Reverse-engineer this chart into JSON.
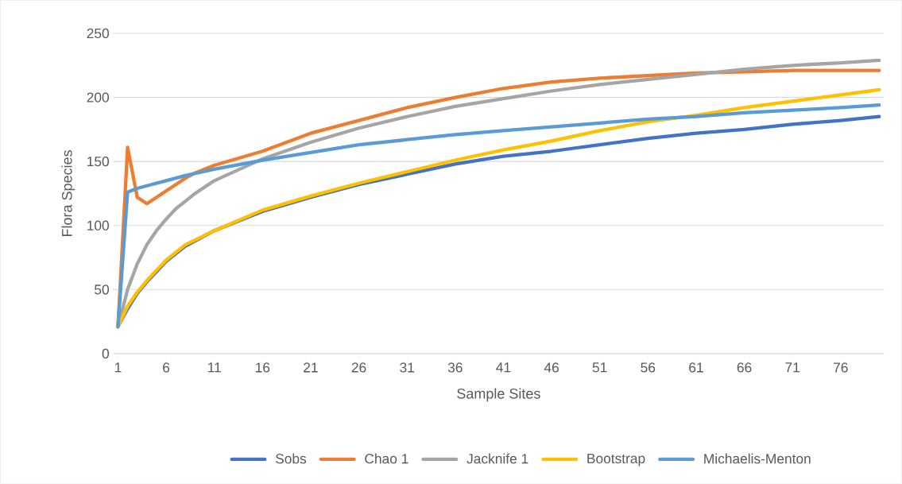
{
  "chart_data": {
    "type": "line",
    "xlabel": "Sample Sites",
    "ylabel": "Flora Species",
    "xlim": [
      0.5,
      80.5
    ],
    "xticks": [
      1,
      6,
      11,
      16,
      21,
      26,
      31,
      36,
      41,
      46,
      51,
      56,
      61,
      66,
      71,
      76
    ],
    "ylim": [
      0,
      250
    ],
    "yticks": [
      0,
      50,
      100,
      150,
      200,
      250
    ],
    "grid": "y",
    "legend": "bottom",
    "marker": "none",
    "line_style": "solid",
    "series": [
      {
        "name": "Sobs",
        "color": "#4472c4",
        "x": [
          1,
          2,
          3,
          4,
          5,
          6,
          8,
          11,
          16,
          21,
          26,
          31,
          36,
          41,
          46,
          51,
          56,
          61,
          66,
          71,
          76,
          80
        ],
        "values": [
          21,
          35,
          47,
          56,
          64,
          72,
          84,
          96,
          111,
          122,
          132,
          140,
          148,
          154,
          158,
          163,
          168,
          172,
          175,
          179,
          182,
          185
        ]
      },
      {
        "name": "Chao 1",
        "color": "#ed7d31",
        "x": [
          1,
          2,
          3,
          4,
          5,
          6,
          7,
          8,
          9,
          10,
          11,
          16,
          21,
          26,
          31,
          36,
          41,
          46,
          51,
          56,
          61,
          66,
          71,
          76,
          80
        ],
        "values": [
          21,
          161,
          122,
          117,
          122,
          127,
          132,
          137,
          141,
          144,
          147,
          158,
          172,
          182,
          192,
          200,
          207,
          212,
          215,
          217,
          219,
          220,
          221,
          221,
          221
        ]
      },
      {
        "name": "Jacknife 1",
        "color": "#a5a5a5",
        "x": [
          1,
          2,
          3,
          4,
          5,
          6,
          7,
          8,
          9,
          10,
          11,
          16,
          21,
          26,
          31,
          36,
          41,
          46,
          51,
          56,
          61,
          66,
          71,
          76,
          80
        ],
        "values": [
          21,
          50,
          70,
          85,
          96,
          105,
          113,
          119,
          125,
          130,
          135,
          152,
          165,
          176,
          185,
          193,
          199,
          205,
          210,
          214,
          218,
          222,
          225,
          227,
          229
        ]
      },
      {
        "name": "Bootstrap",
        "color": "#ffc000",
        "x": [
          1,
          2,
          3,
          4,
          5,
          6,
          8,
          11,
          16,
          21,
          26,
          31,
          36,
          41,
          46,
          51,
          56,
          61,
          66,
          71,
          76,
          80
        ],
        "values": [
          21,
          37,
          48,
          57,
          65,
          73,
          85,
          96,
          112,
          123,
          133,
          142,
          151,
          159,
          166,
          174,
          181,
          186,
          192,
          197,
          202,
          206
        ]
      },
      {
        "name": "Michaelis-Menton",
        "color": "#5b9bd5",
        "x": [
          1,
          2,
          3,
          4,
          5,
          6,
          8,
          11,
          16,
          21,
          26,
          31,
          36,
          41,
          46,
          51,
          56,
          61,
          66,
          71,
          76,
          80
        ],
        "values": [
          21,
          126,
          129,
          131,
          133,
          135,
          139,
          144,
          151,
          157,
          163,
          167,
          171,
          174,
          177,
          180,
          183,
          185,
          188,
          190,
          192,
          194
        ]
      }
    ]
  }
}
